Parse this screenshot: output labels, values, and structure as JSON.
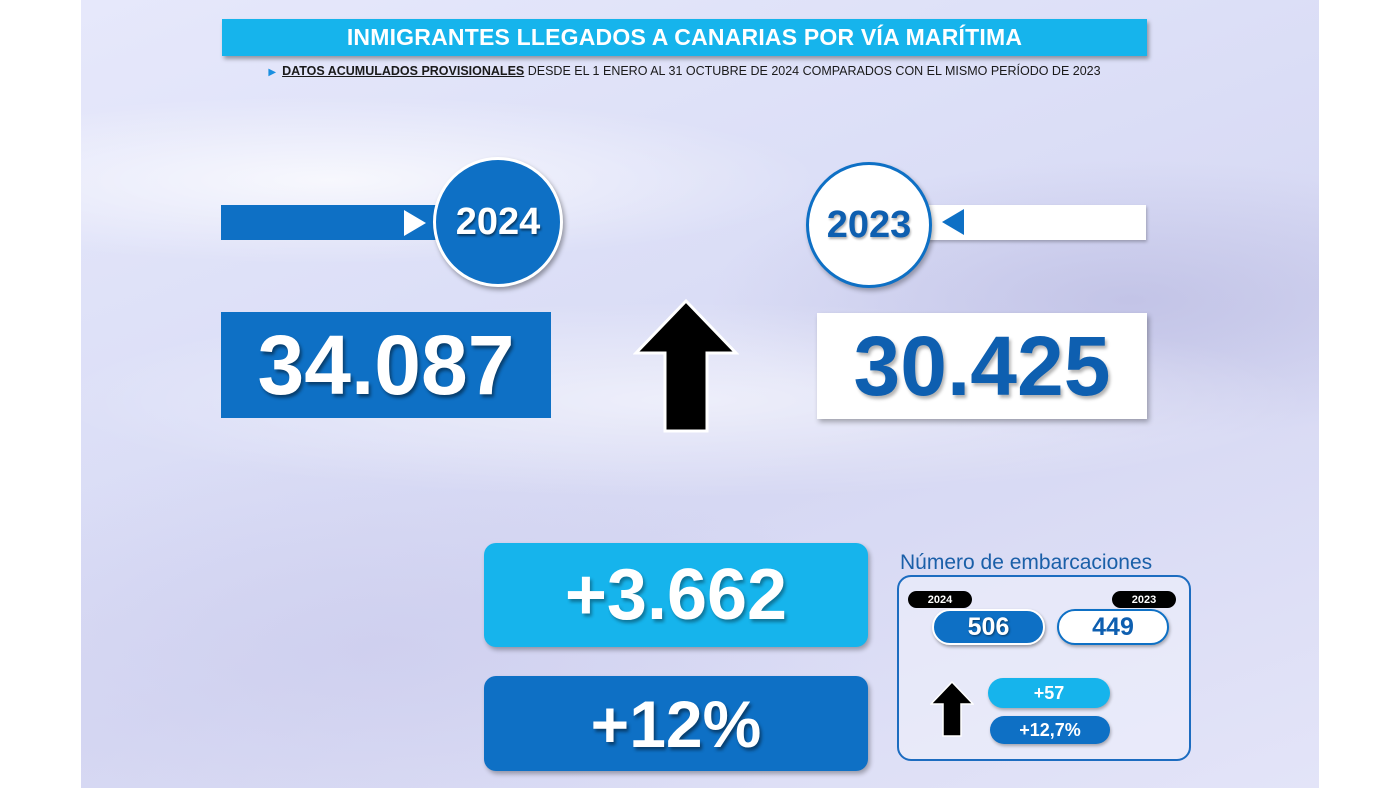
{
  "header": {
    "title": "INMIGRANTES LLEGADOS A CANARIAS POR VÍA MARÍTIMA",
    "subtitle_bold": "DATOS ACUMULADOS PROVISIONALES",
    "subtitle_rest": " DESDE EL 1 ENERO AL 31 OCTUBRE DE 2024 COMPARADOS CON EL MISMO PERÍODO DE 2023"
  },
  "years": {
    "current": "2024",
    "previous": "2023"
  },
  "totals": {
    "current": "34.087",
    "previous": "30.425",
    "difference": "+3.662",
    "percent_change": "+12%"
  },
  "boats": {
    "title": "Número de embarcaciones",
    "label_current": "2024",
    "label_previous": "2023",
    "current": "506",
    "previous": "449",
    "difference": "+57",
    "percent_change": "+12,7%"
  },
  "icons": {
    "trend": "arrow-up-icon",
    "pointer_right": "triangle-right-icon",
    "pointer_left": "triangle-left-icon"
  },
  "colors": {
    "dark_blue": "#0e70c5",
    "light_blue": "#16b4ec",
    "arrow": "#000000"
  }
}
